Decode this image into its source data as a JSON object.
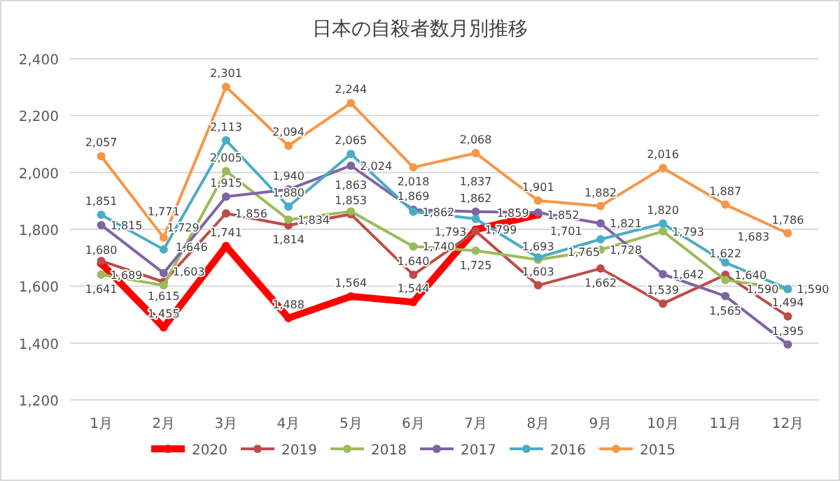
{
  "chart_data": {
    "type": "line",
    "title": "日本の自殺者数月別推移",
    "categories": [
      "1月",
      "2月",
      "3月",
      "4月",
      "5月",
      "6月",
      "7月",
      "8月",
      "9月",
      "10月",
      "11月",
      "12月"
    ],
    "series": [
      {
        "name": "2020",
        "color": "#ff0000",
        "values": [
          1680,
          1455,
          1741,
          1488,
          1564,
          1544,
          1799,
          1852,
          null,
          null,
          null,
          null
        ],
        "value_labels": [
          "1,680",
          "1,455",
          "1,741",
          "1,488",
          "1,564",
          "1,544",
          "1,799",
          "1,852",
          null,
          null,
          null,
          null
        ]
      },
      {
        "name": "2019",
        "color": "#be4b48",
        "values": [
          1689,
          1615,
          1856,
          1814,
          1853,
          1640,
          1793,
          1603,
          1662,
          1539,
          1640,
          1494
        ],
        "value_labels": [
          "1,689",
          "1,615",
          "1,856",
          "1,814",
          "1,853",
          "1,640",
          "1,793",
          "1,603",
          "1,662",
          "1,539",
          "1,640",
          "1,494"
        ]
      },
      {
        "name": "2018",
        "color": "#9bbb59",
        "values": [
          1641,
          1603,
          2005,
          1834,
          1863,
          1740,
          1725,
          1693,
          1728,
          1793,
          1622,
          1590
        ],
        "value_labels": [
          "1,641",
          "1,603",
          "2,005",
          "1,834",
          "1,863",
          "1,740",
          "1,725",
          "1,693",
          "1,728",
          "1,793",
          "1,622",
          "1,590"
        ]
      },
      {
        "name": "2017",
        "color": "#8064a2",
        "values": [
          1815,
          1646,
          1915,
          1940,
          2024,
          1869,
          1862,
          1859,
          1821,
          1642,
          1565,
          1395
        ],
        "value_labels": [
          "1,815",
          "1,646",
          "1,915",
          "1,940",
          "2,024",
          "1,869",
          "1,862",
          "1,859",
          "1,821",
          "1,642",
          "1,565",
          "1,395"
        ]
      },
      {
        "name": "2016",
        "color": "#4bacc6",
        "values": [
          1851,
          1729,
          2113,
          1880,
          2065,
          1862,
          1837,
          1701,
          1765,
          1820,
          1683,
          1590
        ],
        "value_labels": [
          "1,851",
          "1,729",
          "2,113",
          "1,880",
          "2,065",
          "1,862",
          "1,837",
          "1,701",
          "1,765",
          "1,820",
          "1,683",
          "1,590"
        ]
      },
      {
        "name": "2015",
        "color": "#f79646",
        "values": [
          2057,
          1771,
          2301,
          2094,
          2244,
          2018,
          2068,
          1901,
          1882,
          2016,
          1887,
          1786
        ],
        "value_labels": [
          "2,057",
          "1,771",
          "2,301",
          "2,094",
          "2,244",
          "2,018",
          "2,068",
          "1,901",
          "1,882",
          "2,016",
          "1,887",
          "1,786"
        ]
      }
    ],
    "ylim": [
      1200,
      2400
    ],
    "yticks": [
      {
        "value": 1200,
        "label": "1,200"
      },
      {
        "value": 1400,
        "label": "1,400"
      },
      {
        "value": 1600,
        "label": "1,600"
      },
      {
        "value": 1800,
        "label": "1,800"
      },
      {
        "value": 2000,
        "label": "2,000"
      },
      {
        "value": 2200,
        "label": "2,200"
      },
      {
        "value": 2400,
        "label": "2,400"
      }
    ],
    "grid": "y",
    "legend": "bottom",
    "marker": "circle"
  }
}
